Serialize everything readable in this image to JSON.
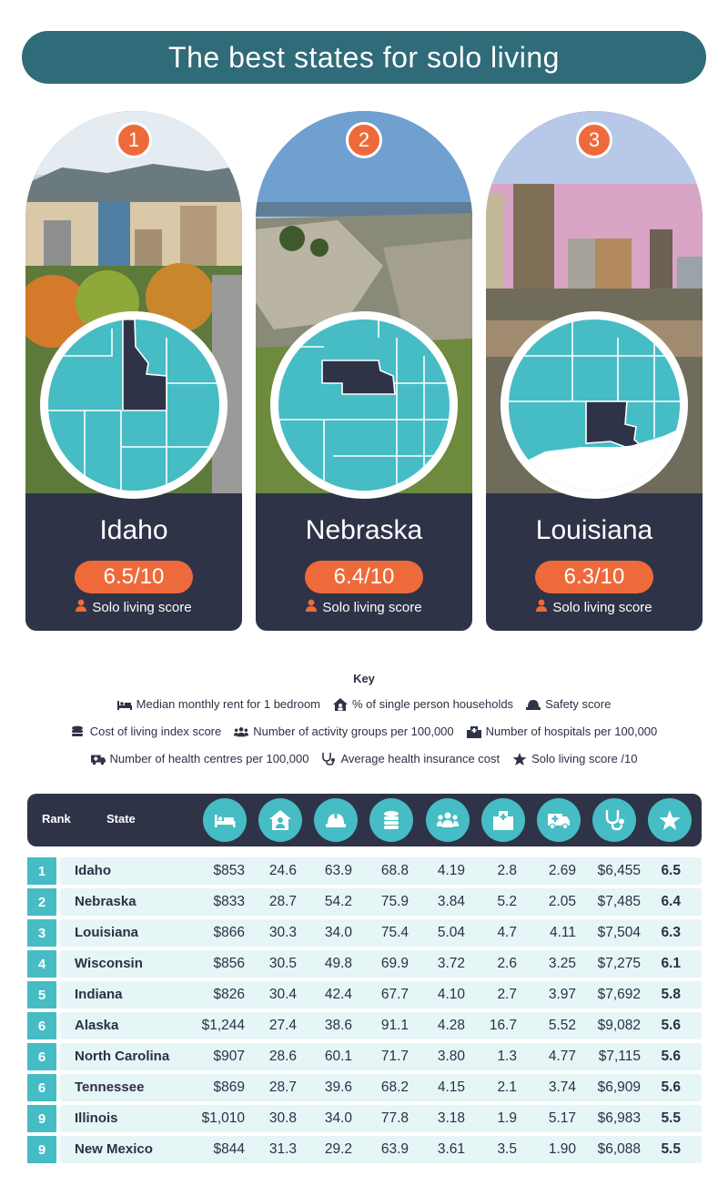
{
  "title": "The best states for solo living",
  "cards": [
    {
      "rank": "1",
      "name": "Idaho",
      "score": "6.5/10",
      "score_label": "Solo living score"
    },
    {
      "rank": "2",
      "name": "Nebraska",
      "score": "6.4/10",
      "score_label": "Solo living score"
    },
    {
      "rank": "3",
      "name": "Louisiana",
      "score": "6.3/10",
      "score_label": "Solo living score"
    }
  ],
  "key": {
    "title": "Key",
    "items": [
      {
        "icon": "bed-icon",
        "label": "Median monthly rent for 1 bedroom"
      },
      {
        "icon": "home-person-icon",
        "label": "% of single person households"
      },
      {
        "icon": "hard-hat-icon",
        "label": "Safety score"
      },
      {
        "icon": "coins-icon",
        "label": "Cost of living index score"
      },
      {
        "icon": "people-group-icon",
        "label": "Number of activity groups per 100,000"
      },
      {
        "icon": "hospital-icon",
        "label": "Number of hospitals per 100,000"
      },
      {
        "icon": "ambulance-icon",
        "label": "Number of health centres per 100,000"
      },
      {
        "icon": "stethoscope-icon",
        "label": "Average health insurance cost"
      },
      {
        "icon": "star-icon",
        "label": "Solo living score /10"
      }
    ]
  },
  "table": {
    "headers": {
      "rank": "Rank",
      "state": "State"
    },
    "rows": [
      {
        "rank": "1",
        "state": "Idaho",
        "rent": "$853",
        "single": "24.6",
        "safety": "63.9",
        "col": "68.8",
        "activity": "4.19",
        "hospitals": "2.8",
        "centres": "2.69",
        "insurance": "$6,455",
        "score": "6.5"
      },
      {
        "rank": "2",
        "state": "Nebraska",
        "rent": "$833",
        "single": "28.7",
        "safety": "54.2",
        "col": "75.9",
        "activity": "3.84",
        "hospitals": "5.2",
        "centres": "2.05",
        "insurance": "$7,485",
        "score": "6.4"
      },
      {
        "rank": "3",
        "state": "Louisiana",
        "rent": "$866",
        "single": "30.3",
        "safety": "34.0",
        "col": "75.4",
        "activity": "5.04",
        "hospitals": "4.7",
        "centres": "4.11",
        "insurance": "$7,504",
        "score": "6.3"
      },
      {
        "rank": "4",
        "state": "Wisconsin",
        "rent": "$856",
        "single": "30.5",
        "safety": "49.8",
        "col": "69.9",
        "activity": "3.72",
        "hospitals": "2.6",
        "centres": "3.25",
        "insurance": "$7,275",
        "score": "6.1"
      },
      {
        "rank": "5",
        "state": "Indiana",
        "rent": "$826",
        "single": "30.4",
        "safety": "42.4",
        "col": "67.7",
        "activity": "4.10",
        "hospitals": "2.7",
        "centres": "3.97",
        "insurance": "$7,692",
        "score": "5.8"
      },
      {
        "rank": "6",
        "state": "Alaska",
        "rent": "$1,244",
        "single": "27.4",
        "safety": "38.6",
        "col": "91.1",
        "activity": "4.28",
        "hospitals": "16.7",
        "centres": "5.52",
        "insurance": "$9,082",
        "score": "5.6"
      },
      {
        "rank": "6",
        "state": "North Carolina",
        "rent": "$907",
        "single": "28.6",
        "safety": "60.1",
        "col": "71.7",
        "activity": "3.80",
        "hospitals": "1.3",
        "centres": "4.77",
        "insurance": "$7,115",
        "score": "5.6"
      },
      {
        "rank": "6",
        "state": "Tennessee",
        "rent": "$869",
        "single": "28.7",
        "safety": "39.6",
        "col": "68.2",
        "activity": "4.15",
        "hospitals": "2.1",
        "centres": "3.74",
        "insurance": "$6,909",
        "score": "5.6"
      },
      {
        "rank": "9",
        "state": "Illinois",
        "rent": "$1,010",
        "single": "30.8",
        "safety": "34.0",
        "col": "77.8",
        "activity": "3.18",
        "hospitals": "1.9",
        "centres": "5.17",
        "insurance": "$6,983",
        "score": "5.5"
      },
      {
        "rank": "9",
        "state": "New Mexico",
        "rent": "$844",
        "single": "31.3",
        "safety": "29.2",
        "col": "63.9",
        "activity": "3.61",
        "hospitals": "3.5",
        "centres": "1.90",
        "insurance": "$6,088",
        "score": "5.5"
      }
    ]
  },
  "colors": {
    "teal": "#46bcc4",
    "navy": "#2e3347",
    "orange": "#ef6a3a",
    "title_bar": "#2f6b78",
    "row_bg": "#e6f5f6"
  }
}
